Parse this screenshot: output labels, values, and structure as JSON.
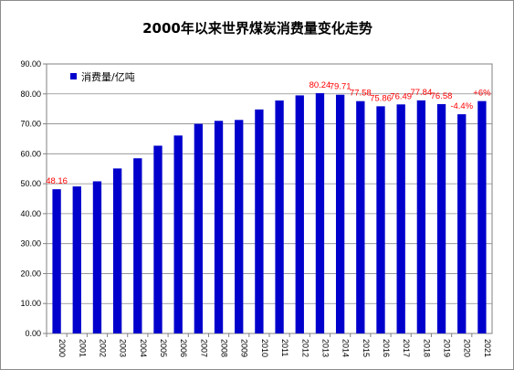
{
  "chart_data": {
    "type": "bar",
    "title": "2000年以来世界煤炭消费量变化走势",
    "categories": [
      "2000",
      "2001",
      "2002",
      "2003",
      "2004",
      "2005",
      "2006",
      "2007",
      "2008",
      "2009",
      "2010",
      "2011",
      "2012",
      "2013",
      "2014",
      "2015",
      "2016",
      "2017",
      "2018",
      "2019",
      "2020",
      "2021"
    ],
    "series": [
      {
        "name": "消费量/亿吨",
        "color": "#0000CC",
        "values": [
          48.16,
          49.1,
          50.8,
          55.1,
          58.5,
          62.7,
          66.1,
          70.0,
          71.0,
          71.3,
          74.8,
          77.8,
          79.5,
          80.24,
          79.71,
          77.58,
          75.86,
          76.49,
          77.84,
          76.58,
          73.2,
          77.6
        ]
      }
    ],
    "ylim": [
      0,
      90
    ],
    "ytick_step": 10,
    "ytick_labels": [
      "0.00",
      "10.00",
      "20.00",
      "30.00",
      "40.00",
      "50.00",
      "60.00",
      "70.00",
      "80.00",
      "90.00"
    ],
    "grid": true,
    "legend_position": "top-left",
    "annotations": [
      {
        "category": "2000",
        "text": "48.16"
      },
      {
        "category": "2013",
        "text": "80.24"
      },
      {
        "category": "2014",
        "text": "79.71"
      },
      {
        "category": "2015",
        "text": "77.58"
      },
      {
        "category": "2016",
        "text": "75.86"
      },
      {
        "category": "2017",
        "text": "76.49"
      },
      {
        "category": "2018",
        "text": "77.84"
      },
      {
        "category": "2019",
        "text": "76.58"
      },
      {
        "category": "2020",
        "text": "-4.4%"
      },
      {
        "category": "2021",
        "text": "+6%"
      }
    ],
    "annotation_color": "#FF0000"
  }
}
